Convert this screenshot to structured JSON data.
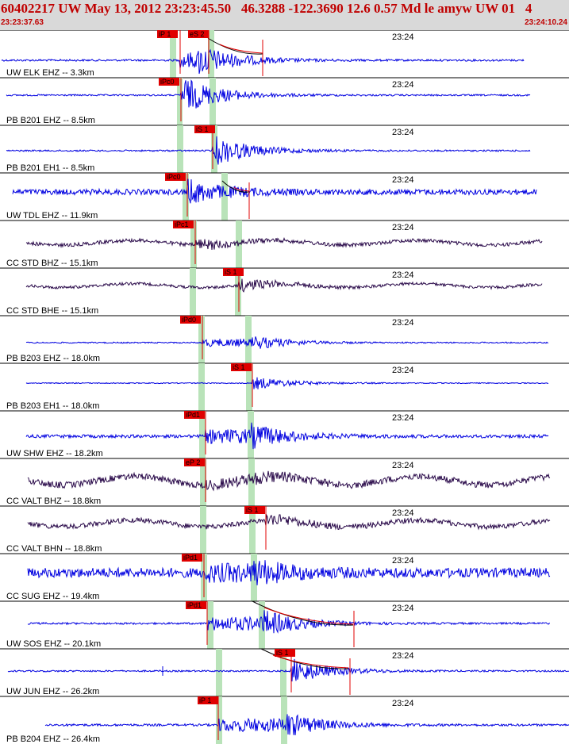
{
  "header": {
    "title": "60402217 UW May 13, 2012 23:23:45.50   46.3288 -122.3690 12.6 0.57 Md le amyw UW 01   4",
    "start_time": "23:23:37.63",
    "end_time": "23:24:10.24"
  },
  "colors": {
    "header_text": "#c00000",
    "header_bg": "#d9d9d9",
    "trace_blue": "#0000e0",
    "trace_dark": "#2a0a4a",
    "pick": "#e00000",
    "window": "#b9e3b9",
    "coda": "#000000"
  },
  "channels": [
    {
      "label": "UW ELK EHZ -- 3.3km",
      "time": "23:24",
      "color": "blue",
      "picks": [
        {
          "text": "iP 1"
        },
        {
          "text": "eS 2"
        }
      ]
    },
    {
      "label": "PB B201 EHZ -- 8.5km",
      "time": "23:24",
      "color": "blue",
      "picks": [
        {
          "text": "iPc0"
        }
      ]
    },
    {
      "label": "PB B201 EH1 -- 8.5km",
      "time": "23:24",
      "color": "blue",
      "picks": [
        {
          "text": "iS 1"
        }
      ]
    },
    {
      "label": "UW TDL EHZ -- 11.9km",
      "time": "23:24",
      "color": "blue",
      "picks": [
        {
          "text": "iPc0"
        }
      ]
    },
    {
      "label": "CC STD BHZ -- 15.1km",
      "time": "23:24",
      "color": "dark",
      "picks": [
        {
          "text": "iPc1"
        }
      ]
    },
    {
      "label": "CC STD BHE -- 15.1km",
      "time": "23:24",
      "color": "dark",
      "picks": [
        {
          "text": "iS 1"
        }
      ]
    },
    {
      "label": "PB B203 EHZ -- 18.0km",
      "time": "23:24",
      "color": "blue",
      "picks": [
        {
          "text": "iPd0"
        }
      ]
    },
    {
      "label": "PB B203 EH1 -- 18.0km",
      "time": "23:24",
      "color": "blue",
      "picks": [
        {
          "text": "iS 1"
        }
      ]
    },
    {
      "label": "UW SHW EHZ -- 18.2km",
      "time": "23:24",
      "color": "blue",
      "picks": [
        {
          "text": "iPd1"
        }
      ]
    },
    {
      "label": "CC VALT BHZ -- 18.8km",
      "time": "23:24",
      "color": "dark",
      "picks": [
        {
          "text": "eP 2"
        }
      ]
    },
    {
      "label": "CC VALT BHN -- 18.8km",
      "time": "23:24",
      "color": "dark",
      "picks": [
        {
          "text": "iS 1"
        }
      ]
    },
    {
      "label": "CC SUG EHZ -- 19.4km",
      "time": "23:24",
      "color": "blue",
      "picks": [
        {
          "text": "iPd1"
        }
      ]
    },
    {
      "label": "UW SOS EHZ -- 20.1km",
      "time": "23:24",
      "color": "blue",
      "picks": [
        {
          "text": "iPd1"
        }
      ]
    },
    {
      "label": "UW JUN EHZ -- 26.2km",
      "time": "23:24",
      "color": "blue",
      "picks": [
        {
          "text": "iS 1"
        }
      ]
    },
    {
      "label": "PB B204 EHZ -- 26.4km",
      "time": "23:24",
      "color": "blue",
      "picks": [
        {
          "text": "iP 1"
        }
      ]
    }
  ]
}
